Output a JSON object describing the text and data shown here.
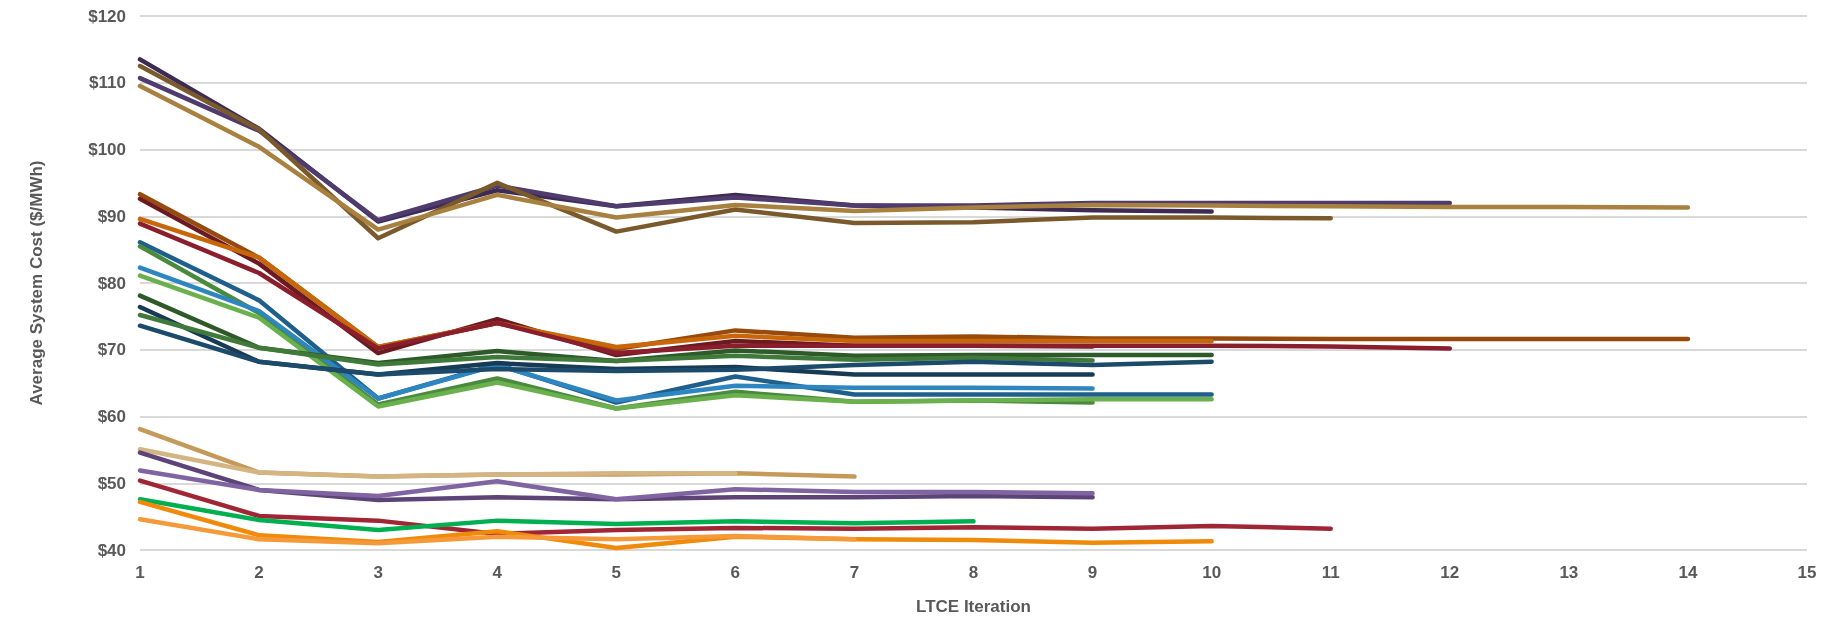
{
  "chart_data": {
    "type": "line",
    "xlabel": "LTCE Iteration",
    "ylabel": "Average System Cost ($/MWh)",
    "x": [
      1,
      2,
      3,
      4,
      5,
      6,
      7,
      8,
      9,
      10,
      11,
      12,
      13,
      14
    ],
    "xlim": [
      1,
      15
    ],
    "xticks": [
      1,
      2,
      3,
      4,
      5,
      6,
      7,
      8,
      9,
      10,
      11,
      12,
      13,
      14,
      15
    ],
    "ylim": [
      40,
      120
    ],
    "yticks": [
      {
        "value": 40,
        "label": "$40"
      },
      {
        "value": 50,
        "label": "$50"
      },
      {
        "value": 60,
        "label": "$60"
      },
      {
        "value": 70,
        "label": "$70"
      },
      {
        "value": 80,
        "label": "$80"
      },
      {
        "value": 90,
        "label": "$90"
      },
      {
        "value": 100,
        "label": "$100"
      },
      {
        "value": 110,
        "label": "$110"
      },
      {
        "value": 120,
        "label": "$120"
      }
    ],
    "grid": "y",
    "line_style": "solid",
    "series": [
      {
        "color": "#3d2b52",
        "values": [
          113.5,
          103.1,
          89.2,
          93.9,
          91.5,
          93.2,
          91.6,
          91.3,
          90.9,
          90.7,
          null,
          null,
          null,
          null
        ]
      },
      {
        "color": "#4f3b6e",
        "values": [
          110.7,
          102.8,
          89.4,
          94.6,
          91.5,
          92.8,
          91.6,
          91.6,
          92.0,
          92.0,
          92.0,
          92.0,
          null,
          null
        ]
      },
      {
        "color": "#7a5a2c",
        "values": [
          112.5,
          103.0,
          86.7,
          95.0,
          87.7,
          91.0,
          89.0,
          89.1,
          89.8,
          89.8,
          89.7,
          null,
          null,
          null
        ]
      },
      {
        "color": "#a8803f",
        "values": [
          109.5,
          100.4,
          88.0,
          93.2,
          89.8,
          91.7,
          90.8,
          91.3,
          91.7,
          91.6,
          91.5,
          91.4,
          91.4,
          91.3
        ]
      },
      {
        "color": "#974a0c",
        "values": [
          93.3,
          83.8,
          70.4,
          74.0,
          70.1,
          72.9,
          71.8,
          72.0,
          71.7,
          71.7,
          71.6,
          71.6,
          71.6,
          71.6
        ]
      },
      {
        "color": "#6b1a1f",
        "values": [
          92.6,
          82.9,
          69.5,
          74.6,
          69.2,
          71.3,
          70.6,
          70.6,
          70.5,
          null,
          null,
          null,
          null,
          null
        ]
      },
      {
        "color": "#c8670a",
        "values": [
          89.6,
          83.8,
          70.4,
          74.0,
          70.4,
          72.1,
          71.3,
          71.3,
          71.3,
          71.3,
          null,
          null,
          null,
          null
        ]
      },
      {
        "color": "#8b1e2c",
        "values": [
          88.9,
          81.5,
          70.2,
          74.0,
          69.5,
          70.6,
          70.6,
          70.6,
          70.6,
          70.6,
          70.5,
          70.2,
          null,
          null
        ]
      },
      {
        "color": "#1f5f8b",
        "values": [
          86.1,
          77.4,
          62.7,
          67.8,
          62.1,
          66.0,
          63.3,
          63.3,
          63.3,
          63.3,
          null,
          null,
          null,
          null
        ]
      },
      {
        "color": "#4a8a3f",
        "values": [
          85.5,
          75.5,
          61.8,
          65.7,
          61.2,
          63.7,
          62.2,
          62.4,
          62.1,
          null,
          null,
          null,
          null,
          null
        ]
      },
      {
        "color": "#2e86c1",
        "values": [
          82.3,
          75.8,
          62.7,
          67.7,
          62.4,
          64.6,
          64.3,
          64.3,
          64.2,
          null,
          null,
          null,
          null,
          null
        ]
      },
      {
        "color": "#6ab04c",
        "values": [
          81.1,
          74.8,
          61.5,
          65.1,
          61.2,
          63.2,
          62.2,
          62.4,
          62.6,
          62.6,
          null,
          null,
          null,
          null
        ]
      },
      {
        "color": "#2e5a2a",
        "values": [
          78.1,
          70.3,
          68.0,
          69.8,
          68.3,
          69.9,
          69.1,
          69.2,
          69.2,
          69.2,
          null,
          null,
          null,
          null
        ]
      },
      {
        "color": "#173a55",
        "values": [
          76.4,
          68.2,
          66.3,
          68.0,
          67.1,
          67.4,
          66.3,
          66.3,
          66.3,
          null,
          null,
          null,
          null,
          null
        ]
      },
      {
        "color": "#3f7a3a",
        "values": [
          75.2,
          70.3,
          67.8,
          68.9,
          68.3,
          69.1,
          68.5,
          68.8,
          68.4,
          null,
          null,
          null,
          null,
          null
        ]
      },
      {
        "color": "#1b4a6b",
        "values": [
          73.6,
          68.2,
          66.3,
          67.1,
          66.8,
          67.0,
          67.7,
          68.2,
          67.7,
          68.2,
          null,
          null,
          null,
          null
        ]
      },
      {
        "color": "#c49a5a",
        "values": [
          58.1,
          51.6,
          51.0,
          51.3,
          51.3,
          51.5,
          51.0,
          null,
          null,
          null,
          null,
          null,
          null,
          null
        ]
      },
      {
        "color": "#d4b483",
        "values": [
          55.1,
          51.6,
          51.0,
          51.3,
          51.5,
          51.5,
          null,
          null,
          null,
          null,
          null,
          null,
          null,
          null
        ]
      },
      {
        "color": "#5c4478",
        "values": [
          54.6,
          49.0,
          47.5,
          47.9,
          47.6,
          47.9,
          47.9,
          48.1,
          47.9,
          null,
          null,
          null,
          null,
          null
        ]
      },
      {
        "color": "#8064a2",
        "values": [
          51.9,
          49.0,
          48.1,
          50.3,
          47.6,
          49.1,
          48.7,
          48.7,
          48.5,
          null,
          null,
          null,
          null,
          null
        ]
      },
      {
        "color": "#a02535",
        "values": [
          50.4,
          45.1,
          44.4,
          42.4,
          43.0,
          43.3,
          43.2,
          43.4,
          43.2,
          43.6,
          43.2,
          null,
          null,
          null
        ]
      },
      {
        "color": "#00b050",
        "values": [
          47.6,
          44.5,
          43.0,
          44.4,
          43.9,
          44.3,
          44.0,
          44.3,
          null,
          null,
          null,
          null,
          null,
          null
        ]
      },
      {
        "color": "#f08a0a",
        "values": [
          47.2,
          42.2,
          41.2,
          42.8,
          40.3,
          42.0,
          41.6,
          41.5,
          41.1,
          41.3,
          null,
          null,
          null,
          null
        ]
      },
      {
        "color": "#f59a3a",
        "values": [
          44.6,
          41.6,
          41.0,
          42.0,
          41.6,
          42.1,
          41.6,
          null,
          null,
          null,
          null,
          null,
          null,
          null
        ]
      }
    ]
  }
}
